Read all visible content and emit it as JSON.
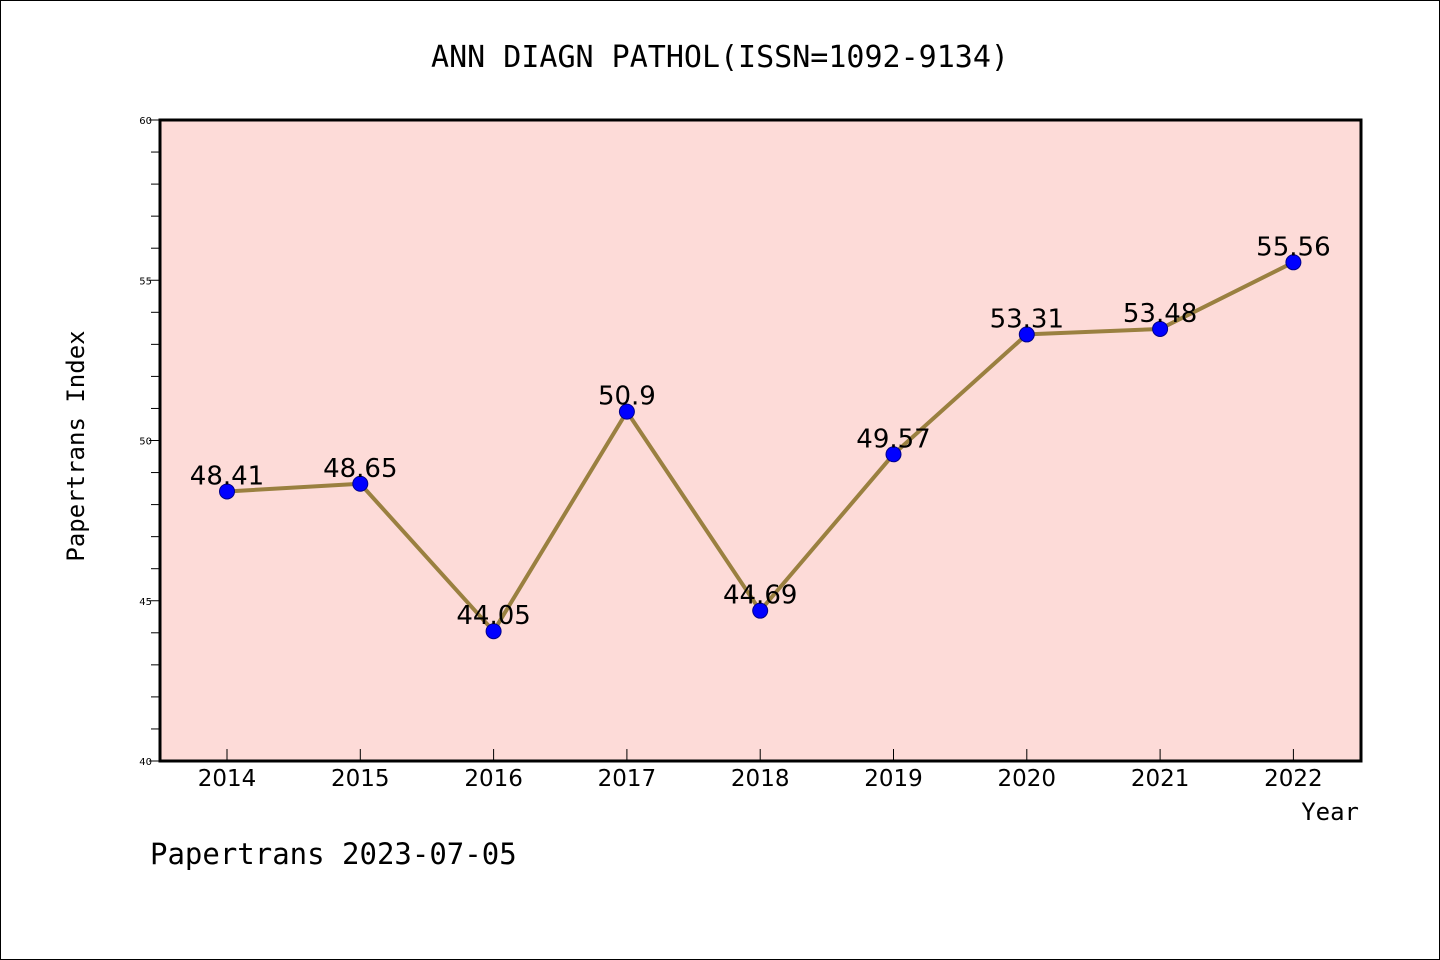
{
  "footer": "Papertrans 2023-07-05",
  "colors": {
    "plot_background": "#fddbd8",
    "line": "#9a8040",
    "marker": "#0000ff",
    "marker_edge": "#00008b"
  },
  "chart_data": {
    "type": "line",
    "title": "ANN DIAGN PATHOL(ISSN=1092-9134)",
    "xlabel": "Year",
    "ylabel": "Papertrans Index",
    "categories": [
      "2014",
      "2015",
      "2016",
      "2017",
      "2018",
      "2019",
      "2020",
      "2021",
      "2022"
    ],
    "series": [
      {
        "values": [
          48.41,
          48.65,
          44.05,
          50.9,
          44.69,
          49.57,
          53.31,
          53.48,
          55.56
        ],
        "labels": [
          "48.41",
          "48.65",
          "44.05",
          "50.9",
          "44.69",
          "49.57",
          "53.31",
          "53.48",
          "55.56"
        ]
      }
    ],
    "ylim": [
      40,
      60
    ],
    "yticks": [
      "40",
      "45",
      "50",
      "55",
      "60"
    ],
    "grid": false,
    "legend": "none"
  }
}
